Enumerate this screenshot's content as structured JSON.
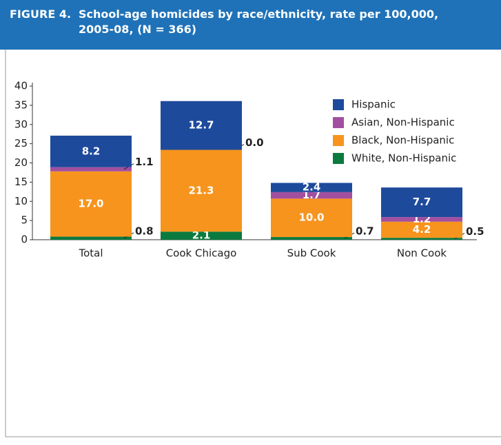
{
  "chart_data": {
    "type": "stacked-bar",
    "figure_label": "FIGURE 4.",
    "title": "School-age homicides by race/ethnicity, rate per 100,000, 2005-08, (N = 366)",
    "categories": [
      "Total",
      "Cook Chicago",
      "Sub Cook",
      "Non Cook"
    ],
    "series": [
      {
        "name": "White, Non-Hispanic",
        "color": "#0b7a3e",
        "values": [
          0.8,
          2.1,
          0.7,
          0.5
        ]
      },
      {
        "name": "Black, Non-Hispanic",
        "color": "#f7941d",
        "values": [
          17.0,
          21.3,
          10.0,
          4.2
        ],
        "value_labels": [
          "17.0",
          "21.3",
          "10.0",
          "4.2"
        ]
      },
      {
        "name": "Asian, Non-Hispanic",
        "color": "#a24f9f",
        "values": [
          1.1,
          0.0,
          1.7,
          1.2
        ],
        "value_labels": [
          "1.1",
          "0.0",
          "1.7",
          "1.2"
        ]
      },
      {
        "name": "Hispanic",
        "color": "#1e4a9c",
        "values": [
          8.2,
          12.7,
          2.4,
          7.7
        ]
      }
    ],
    "ylim": [
      0,
      40
    ],
    "yticks": [
      0,
      5,
      10,
      15,
      20,
      25,
      30,
      35,
      40
    ],
    "legend": "top-right"
  }
}
